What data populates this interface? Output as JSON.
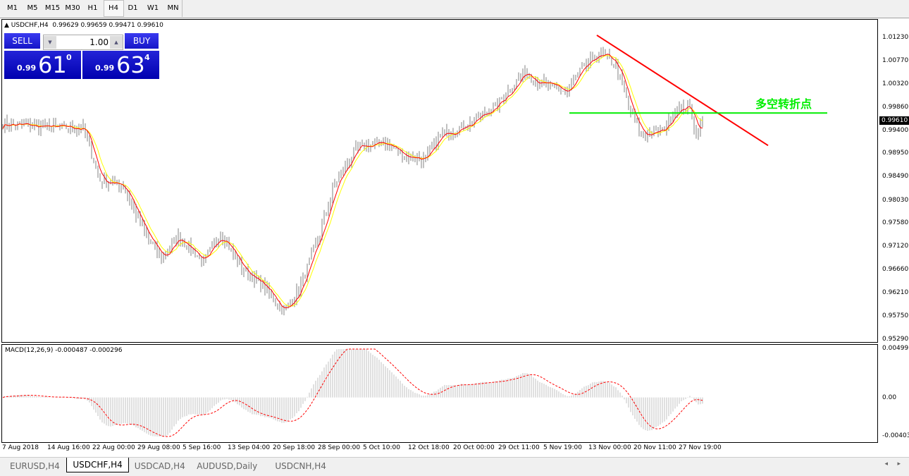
{
  "timeframes": [
    "M1",
    "M5",
    "M15",
    "M30",
    "H1",
    "H4",
    "D1",
    "W1",
    "MN"
  ],
  "active_timeframe": "H4",
  "header": {
    "symbol": "USDCHF,H4",
    "ohlc": "0.99629 0.99659 0.99471 0.99610"
  },
  "trade_panel": {
    "sell_label": "SELL",
    "buy_label": "BUY",
    "lot": "1.00",
    "sell_prefix": "0.99",
    "sell_main": "61",
    "sell_sup": "0",
    "buy_prefix": "0.99",
    "buy_main": "63",
    "buy_sup": "4"
  },
  "annotation": "多空转折点",
  "macd_label": "MACD(12,26,9) -0.000487 -0.000296",
  "current_price": "0.99610",
  "price_ticks": [
    "1.01230",
    "1.00770",
    "1.00320",
    "0.99860",
    "0.99400",
    "0.98950",
    "0.98490",
    "0.98030",
    "0.97580",
    "0.97120",
    "0.96660",
    "0.96210",
    "0.95750",
    "0.95290"
  ],
  "macd_ticks": [
    "0.004993",
    "0.00",
    "-0.004032"
  ],
  "time_ticks": [
    "7 Aug 2018",
    "14 Aug 16:00",
    "22 Aug 00:00",
    "29 Aug 08:00",
    "5 Sep 16:00",
    "13 Sep 04:00",
    "20 Sep 18:00",
    "28 Sep 00:00",
    "5 Oct 10:00",
    "12 Oct 18:00",
    "20 Oct 00:00",
    "29 Oct 11:00",
    "5 Nov 19:00",
    "13 Nov 00:00",
    "20 Nov 11:00",
    "27 Nov 19:00"
  ],
  "tabs": [
    "EURUSD,H4",
    "USDCHF,H4",
    "USDCAD,H4",
    "AUDUSD,Daily",
    "USDCNH,H4"
  ],
  "active_tab": "USDCHF,H4",
  "colors": {
    "fast_ma": "#ff0000",
    "slow_ma": "#ffff00",
    "trendline": "#ff0000",
    "pivot_line": "#00ee00",
    "candles": "#808080"
  },
  "chart_data": {
    "type": "candlestick",
    "symbol": "USDCHF",
    "timeframe": "H4",
    "ylim": [
      0.9529,
      1.0123
    ],
    "close_waypoints": [
      [
        0,
        0.9955
      ],
      [
        26,
        0.9948
      ],
      [
        38,
        0.9948
      ],
      [
        46,
        0.9844
      ],
      [
        57,
        0.9834
      ],
      [
        67,
        0.974
      ],
      [
        75,
        0.9691
      ],
      [
        83,
        0.9733
      ],
      [
        95,
        0.9684
      ],
      [
        103,
        0.974
      ],
      [
        113,
        0.9671
      ],
      [
        123,
        0.9636
      ],
      [
        133,
        0.9587
      ],
      [
        140,
        0.9629
      ],
      [
        150,
        0.974
      ],
      [
        157,
        0.9837
      ],
      [
        167,
        0.9906
      ],
      [
        180,
        0.992
      ],
      [
        190,
        0.9893
      ],
      [
        200,
        0.9886
      ],
      [
        207,
        0.9934
      ],
      [
        220,
        0.9955
      ],
      [
        233,
        0.999
      ],
      [
        247,
        1.0059
      ],
      [
        253,
        1.0038
      ],
      [
        267,
        1.0018
      ],
      [
        273,
        1.0059
      ],
      [
        282,
        1.0094
      ],
      [
        290,
        1.0073
      ],
      [
        297,
        0.9976
      ],
      [
        302,
        0.9934
      ],
      [
        312,
        0.9941
      ],
      [
        318,
        0.9983
      ],
      [
        325,
        0.999
      ],
      [
        328,
        0.9934
      ],
      [
        331,
        0.9961
      ]
    ],
    "trendline": {
      "from": [
        281,
        1.013
      ],
      "to": [
        362,
        0.9913
      ]
    },
    "pivot_line": {
      "price": 0.9977,
      "from": 268,
      "to": 390
    },
    "macd": {
      "fast": 12,
      "slow": 26,
      "signal": 9,
      "range": [
        -0.004032,
        0.004993
      ]
    }
  }
}
